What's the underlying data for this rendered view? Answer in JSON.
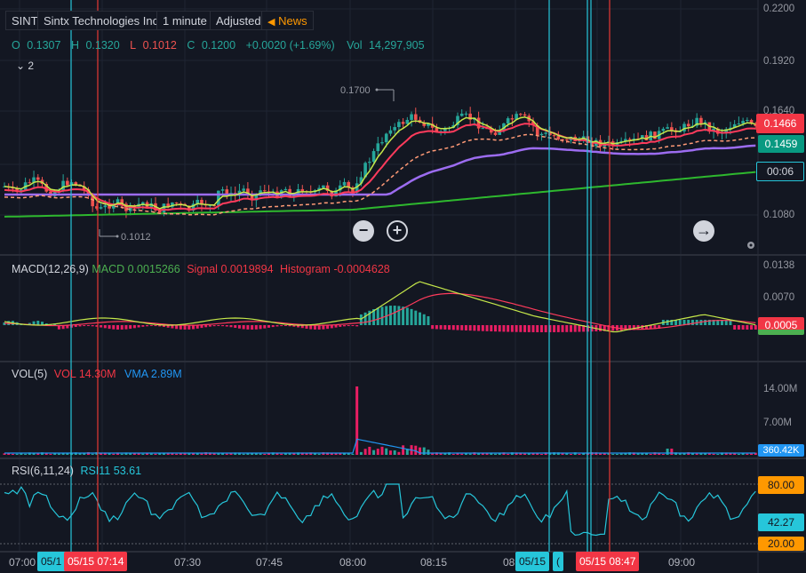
{
  "header": {
    "symbol": "SINT",
    "company": "Sintx Technologies Inc",
    "interval": "1 minute",
    "adjustment": "Adjusted",
    "news_label": "News",
    "ohlc": {
      "o_label": "O",
      "o_value": "0.1307",
      "h_label": "H",
      "h_value": "0.1320",
      "l_label": "L",
      "l_value": "0.1012",
      "c_label": "C",
      "c_value": "0.1200",
      "change": "+0.0020 (+1.69%)",
      "vol_label": "Vol",
      "vol_value": "14,297,905"
    },
    "indicator_count": "2"
  },
  "price_pane": {
    "axis_labels": [
      "0.2200",
      "0.1920",
      "0.1640",
      "0.1080"
    ],
    "high_marker": "0.1700",
    "low_marker": "0.1012",
    "badge_red": "0.1466",
    "badge_green": "0.1459",
    "badge_countdown": "00:06"
  },
  "macd_pane": {
    "title": "MACD(12,26,9)",
    "macd_label": "MACD",
    "macd_value": "0.0015266",
    "signal_label": "Signal",
    "signal_value": "0.0019894",
    "hist_label": "Histogram",
    "hist_value": "-0.0004628",
    "axis_labels": [
      "0.0138",
      "0.0070"
    ],
    "badge": "0.0005"
  },
  "vol_pane": {
    "title": "VOL(5)",
    "vol_label": "VOL",
    "vol_value": "14.30M",
    "vma_label": "VMA",
    "vma_value": "2.89M",
    "axis_labels": [
      "14.00M",
      "7.00M"
    ],
    "badge": "360.42K"
  },
  "rsi_pane": {
    "title": "RSI(6,11,24)",
    "rsi_label": "RSI11",
    "rsi_value": "53.61",
    "badge_top": "80.00",
    "badge_mid": "42.27",
    "badge_bottom": "20.00"
  },
  "time_axis": {
    "labels": [
      "07:00",
      "07:30",
      "07:45",
      "08:00",
      "08:15",
      "08",
      "09:00"
    ],
    "badge_cyan_1": "05/1",
    "badge_red_1": "05/15 07:14",
    "badge_cyan_2": "05/15",
    "badge_cyan_3": "(",
    "badge_red_2": "05/15 08:47"
  },
  "colors": {
    "background": "#131722",
    "up": "#26a69a",
    "down": "#ef5350",
    "cyan_line": "#26c6da",
    "red_line": "#e53935",
    "news": "#ff9800",
    "ema_fast": "#c6e84a",
    "ema_mid": "#ff3b5c",
    "ema_slow_dash": "#ff9a76",
    "vwap": "#9c6cf0",
    "ma_long": "#2eb82e"
  }
}
